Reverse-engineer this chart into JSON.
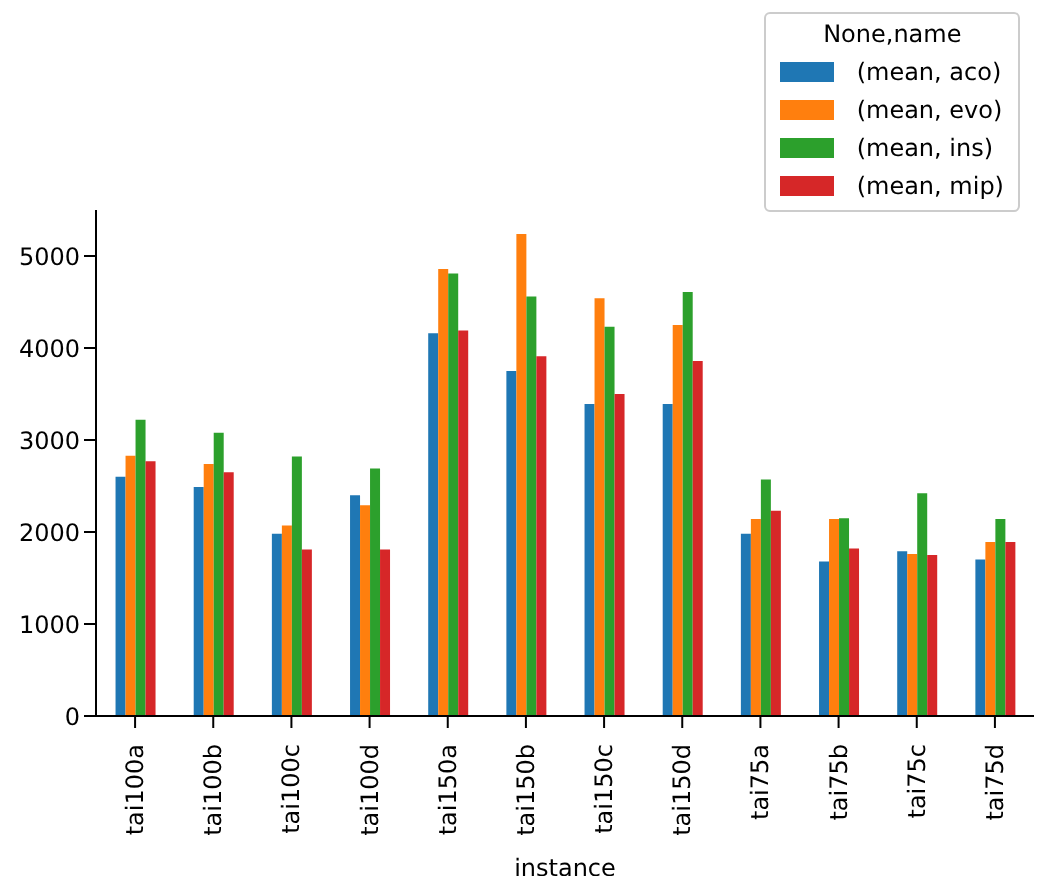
{
  "chart_data": {
    "type": "bar",
    "xlabel": "instance",
    "legend_title": "None,name",
    "categories": [
      "tai100a",
      "tai100b",
      "tai100c",
      "tai100d",
      "tai150a",
      "tai150b",
      "tai150c",
      "tai150d",
      "tai75a",
      "tai75b",
      "tai75c",
      "tai75d"
    ],
    "series": [
      {
        "name": "(mean, aco)",
        "color": "#1f77b4",
        "values": [
          2600,
          2490,
          1980,
          2400,
          4160,
          3750,
          3390,
          3390,
          1980,
          1680,
          1790,
          1700
        ]
      },
      {
        "name": "(mean, evo)",
        "color": "#ff7f0e",
        "values": [
          2830,
          2740,
          2070,
          2290,
          4860,
          5240,
          4540,
          4250,
          2140,
          2140,
          1760,
          1890
        ]
      },
      {
        "name": "(mean, ins)",
        "color": "#2ca02c",
        "values": [
          3220,
          3080,
          2820,
          2690,
          4810,
          4560,
          4230,
          4610,
          2570,
          2150,
          2420,
          2140
        ]
      },
      {
        "name": "(mean, mip)",
        "color": "#d62728",
        "values": [
          2770,
          2650,
          1810,
          1810,
          4190,
          3910,
          3500,
          3860,
          2230,
          1820,
          1750,
          1890
        ]
      }
    ],
    "ylim": [
      0,
      5500
    ],
    "yticks": [
      0,
      1000,
      2000,
      3000,
      4000,
      5000
    ],
    "grid": false,
    "legend": "top right"
  }
}
